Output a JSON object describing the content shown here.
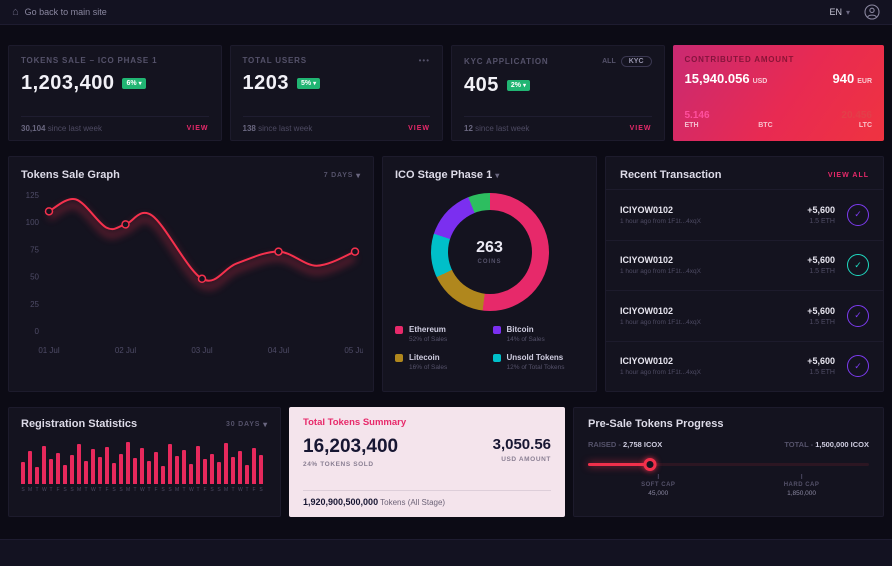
{
  "topbar": {
    "back_label": "Go back to main site",
    "language": "EN"
  },
  "stat_cards": [
    {
      "title": "TOKENS SALE – ICO PHASE 1",
      "value": "1,203,400",
      "badge": "6%",
      "sub_value": "30,104",
      "sub_label": "since last week",
      "view": "VIEW"
    },
    {
      "title": "TOTAL USERS",
      "value": "1203",
      "badge": "5%",
      "sub_value": "138",
      "sub_label": "since last week",
      "view": "VIEW",
      "menu": "•••"
    },
    {
      "title": "KYC APPLICATION",
      "value": "405",
      "badge": "2%",
      "sub_value": "12",
      "sub_label": "since last week",
      "view": "VIEW",
      "toggle_all": "ALL",
      "toggle_kyc": "KYC"
    }
  ],
  "contributed": {
    "title": "CONTRIBUTED AMOUNT",
    "primary_value": "15,940.056",
    "primary_unit": "USD",
    "secondary_value": "940",
    "secondary_unit": "EUR",
    "coins": [
      {
        "value": "5.146",
        "unit": "ETH",
        "color": "#ff4f9e"
      },
      {
        "value": "",
        "unit": "BTC",
        "color": "#ff6a7e"
      },
      {
        "value": "20.456",
        "unit": "LTC",
        "color": "#e23f49"
      }
    ]
  },
  "tokens_sale_graph": {
    "title": "Tokens Sale Graph",
    "range": "7 DAYS"
  },
  "ico_stage": {
    "title": "ICO Stage Phase 1",
    "center_value": "263",
    "center_label": "COINS",
    "legend": [
      {
        "name": "Ethereum",
        "detail": "52% of Sales",
        "color": "#e7296a"
      },
      {
        "name": "Bitcoin",
        "detail": "14% of Sales",
        "color": "#7b2ff0"
      },
      {
        "name": "Litecoin",
        "detail": "16% of Sales",
        "color": "#b0871d"
      },
      {
        "name": "Unsold Tokens",
        "detail": "12% of Total Tokens",
        "color": "#00bfc9"
      }
    ]
  },
  "recent_transactions": {
    "title": "Recent Transaction",
    "view_all": "VIEW ALL",
    "items": [
      {
        "id": "ICIYOW0102",
        "meta": "1 hour ago from 1F1t...4xqX",
        "amount": "+5,600",
        "coin": "1.5 ETH",
        "icon_color": "#7c3bf0"
      },
      {
        "id": "ICIYOW0102",
        "meta": "1 hour ago from 1F1t...4xqX",
        "amount": "+5,600",
        "coin": "1.5 ETH",
        "icon_color": "#1fd9c0"
      },
      {
        "id": "ICIYOW0102",
        "meta": "1 hour ago from 1F1t...4xqX",
        "amount": "+5,600",
        "coin": "1.5 ETH",
        "icon_color": "#7c3bf0"
      },
      {
        "id": "ICIYOW0102",
        "meta": "1 hour ago from 1F1t...4xqX",
        "amount": "+5,600",
        "coin": "1.5 ETH",
        "icon_color": "#7c3bf0"
      }
    ]
  },
  "registration": {
    "title": "Registration Statistics",
    "range": "30 DAYS"
  },
  "summary": {
    "title": "Total Tokens Summary",
    "tokens_value": "16,203,400",
    "tokens_label": "24% TOKENS SOLD",
    "usd_value": "3,050.56",
    "usd_label": "USD AMOUNT",
    "total_value": "1,920,900,500,000",
    "total_label": "Tokens (All Stage)"
  },
  "presale": {
    "title": "Pre-Sale Tokens Progress",
    "raised_label": "RAISED -",
    "raised_value": "2,758 ICOX",
    "total_label": "TOTAL -",
    "total_value": "1,500,000 ICOX",
    "progress_pct": 22,
    "soft_cap_label": "SOFT CAP",
    "soft_cap_value": "45,000",
    "soft_cap_pos_pct": 25,
    "hard_cap_label": "HARD CAP",
    "hard_cap_value": "1,850,000",
    "hard_cap_pos_pct": 76
  },
  "chart_data": [
    {
      "type": "line",
      "title": "Tokens Sale Graph",
      "x": [
        0,
        0.35,
        0.75,
        1,
        1.35,
        2,
        2.45,
        3,
        3.5,
        4
      ],
      "values": [
        110,
        121,
        95,
        98,
        106,
        48,
        62,
        73,
        60,
        73
      ],
      "marker_x": [
        0,
        1,
        2,
        3,
        4
      ],
      "xtick_labels": [
        "01 Jul",
        "02 Jul",
        "03 Jul",
        "04 Jul",
        "05 Jul"
      ],
      "yticks": [
        0,
        25,
        50,
        75,
        100,
        125
      ],
      "ylim": [
        0,
        125
      ],
      "color": "#f5314d",
      "grid": false,
      "legend_position": "none"
    },
    {
      "type": "pie",
      "title": "ICO Stage Phase 1",
      "center_value": 263,
      "center_label": "COINS",
      "segments": [
        {
          "label": "Ethereum",
          "pct": 52,
          "color": "#e7296a"
        },
        {
          "label": "Litecoin",
          "pct": 16,
          "color": "#b0871d"
        },
        {
          "label": "Unsold Tokens",
          "pct": 12,
          "color": "#00bfc9"
        },
        {
          "label": "Bitcoin",
          "pct": 14,
          "color": "#7b2ff0"
        },
        {
          "label": "",
          "pct": 6,
          "color": "#2dbe60"
        }
      ]
    },
    {
      "type": "bar",
      "title": "Registration Statistics",
      "values": [
        48,
        72,
        38,
        82,
        55,
        68,
        42,
        62,
        88,
        50,
        76,
        58,
        80,
        46,
        66,
        92,
        56,
        78,
        50,
        70,
        40,
        86,
        60,
        74,
        44,
        82,
        54,
        66,
        48,
        90,
        58,
        72,
        42,
        78,
        64
      ],
      "labels": [
        "S",
        "M",
        "T",
        "W",
        "T",
        "F",
        "S",
        "S",
        "M",
        "T",
        "W",
        "T",
        "F",
        "S",
        "S",
        "M",
        "T",
        "W",
        "T",
        "F",
        "S",
        "S",
        "M",
        "T",
        "W",
        "T",
        "F",
        "S",
        "S",
        "M",
        "T",
        "W",
        "T",
        "F",
        "S"
      ],
      "color": "#e7295c",
      "ylim": [
        0,
        100
      ]
    }
  ]
}
